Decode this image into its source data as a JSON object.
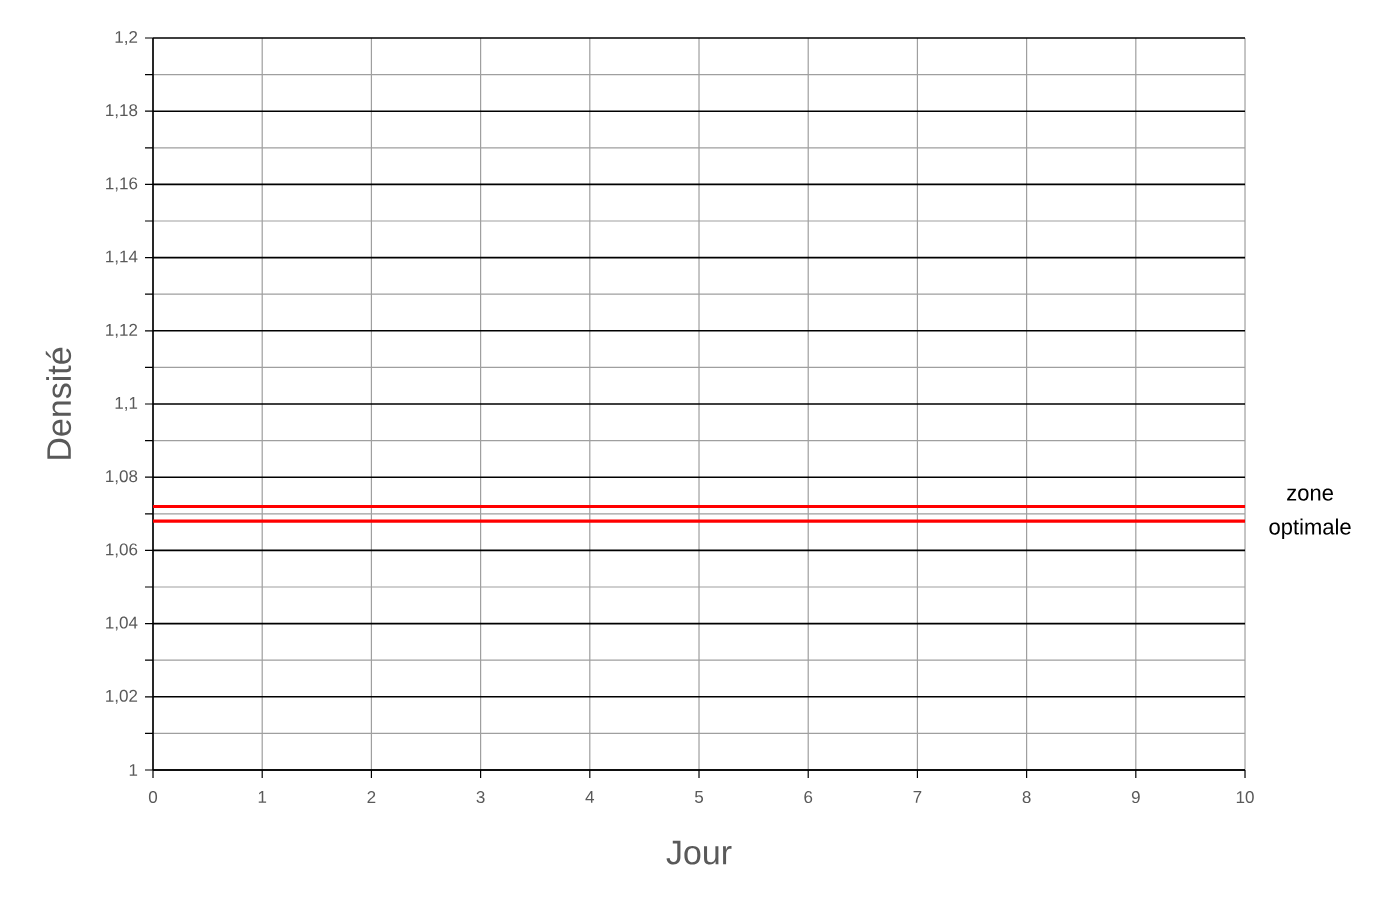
{
  "chart_data": {
    "type": "line",
    "xlabel": "Jour",
    "ylabel": "Densité",
    "xlim": [
      0,
      10
    ],
    "ylim": [
      1,
      1.2
    ],
    "xticks": [
      0,
      1,
      2,
      3,
      4,
      5,
      6,
      7,
      8,
      9,
      10
    ],
    "yticks": [
      {
        "value": 1,
        "label": "1"
      },
      {
        "value": 1.01,
        "label": null
      },
      {
        "value": 1.02,
        "label": "1,02"
      },
      {
        "value": 1.03,
        "label": null
      },
      {
        "value": 1.04,
        "label": "1,04"
      },
      {
        "value": 1.05,
        "label": null
      },
      {
        "value": 1.06,
        "label": "1,06"
      },
      {
        "value": 1.07,
        "label": null
      },
      {
        "value": 1.08,
        "label": "1,08"
      },
      {
        "value": 1.09,
        "label": null
      },
      {
        "value": 1.1,
        "label": "1,1"
      },
      {
        "value": 1.11,
        "label": null
      },
      {
        "value": 1.12,
        "label": "1,12"
      },
      {
        "value": 1.13,
        "label": null
      },
      {
        "value": 1.14,
        "label": "1,14"
      },
      {
        "value": 1.15,
        "label": null
      },
      {
        "value": 1.16,
        "label": "1,16"
      },
      {
        "value": 1.17,
        "label": null
      },
      {
        "value": 1.18,
        "label": "1,18"
      },
      {
        "value": 1.19,
        "label": null
      },
      {
        "value": 1.2,
        "label": "1,2"
      }
    ],
    "grid": true,
    "ref_lines": [
      {
        "axis": "y",
        "value": 1.072,
        "color": "#ff0000"
      },
      {
        "axis": "y",
        "value": 1.068,
        "color": "#ff0000"
      }
    ],
    "annotations": [
      "zone optimale"
    ]
  }
}
